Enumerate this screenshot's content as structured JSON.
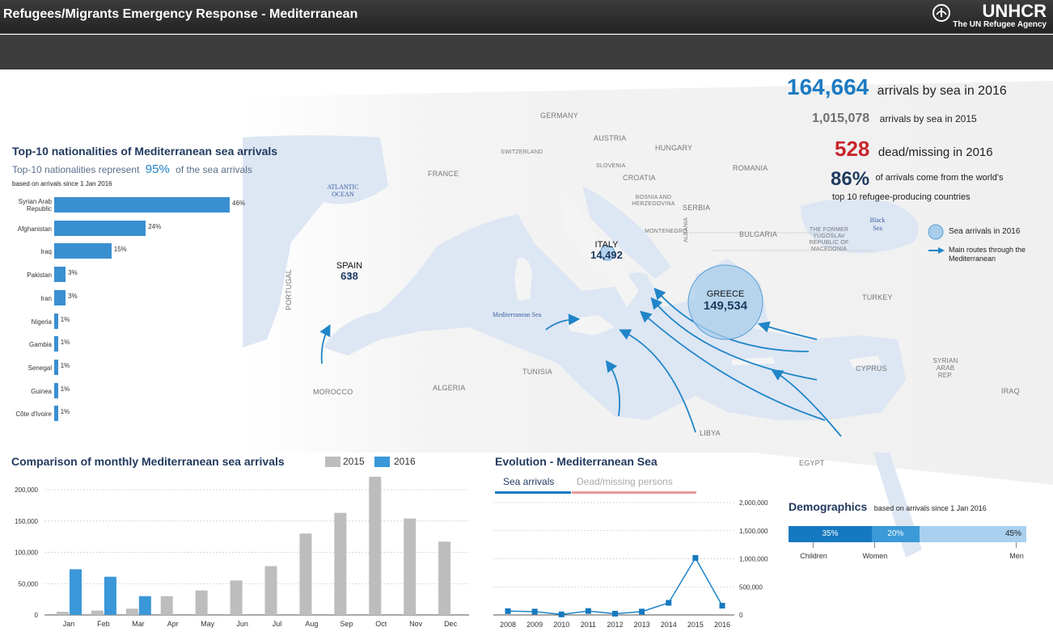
{
  "header": {
    "title": "Refugees/Migrants Emergency Response - Mediterranean",
    "logo_word": "UNHCR",
    "logo_tagline": "The UN Refugee Agency"
  },
  "kpis": {
    "arrivals_2016": {
      "value": "164,664",
      "label": "arrivals by sea in 2016"
    },
    "arrivals_2015": {
      "value": "1,015,078",
      "label": "arrivals by sea in 2015"
    },
    "dead_missing": {
      "value": "528",
      "label": "dead/missing in 2016"
    },
    "top10_share": {
      "value": "86%",
      "label_line1": "of arrivals come from the world's",
      "label_line2": "top 10 refugee-producing countries"
    }
  },
  "map": {
    "countries": [
      {
        "name": "GERMANY"
      },
      {
        "name": "AUSTRIA"
      },
      {
        "name": "SWITZERLAND"
      },
      {
        "name": "HUNGARY"
      },
      {
        "name": "SLOVENIA"
      },
      {
        "name": "CROATIA"
      },
      {
        "name": "ROMANIA"
      },
      {
        "name": "FRANCE"
      },
      {
        "name": "BOSNIA AND HERZEGOVINA"
      },
      {
        "name": "SERBIA"
      },
      {
        "name": "BULGARIA"
      },
      {
        "name": "MONTENEGRO"
      },
      {
        "name": "ALBANIA"
      },
      {
        "name": "THE FORMER YUGOSLAV REPUBLIC OF MACEDONIA"
      },
      {
        "name": "PORTUGAL"
      },
      {
        "name": "TURKEY"
      },
      {
        "name": "TUNISIA"
      },
      {
        "name": "MOROCCO"
      },
      {
        "name": "ALGERIA"
      },
      {
        "name": "LIBYA"
      },
      {
        "name": "EGYPT"
      },
      {
        "name": "CYPRUS"
      },
      {
        "name": "SYRIAN ARAB REP."
      },
      {
        "name": "IRAQ"
      }
    ],
    "seas": [
      "ATLANTIC OCEAN",
      "Mediterranean Sea",
      "Black Sea"
    ],
    "hubs": [
      {
        "name": "SPAIN",
        "value": "638"
      },
      {
        "name": "ITALY",
        "value": "14,492"
      },
      {
        "name": "GREECE",
        "value": "149,534"
      }
    ],
    "legend": {
      "circle": "Sea arrivals in 2016",
      "route": "Main routes through the Mediterranean"
    },
    "colors": {
      "sea": "#dde6f3",
      "land": "#f2f2f2",
      "route": "#1f85c8",
      "circle": "#aacdeb"
    }
  },
  "nationalities": {
    "title": "Top-10 nationalities of Mediterranean sea arrivals",
    "subtitle_prefix": "Top-10 nationalities represent",
    "subtitle_value": "95%",
    "subtitle_suffix": "of the sea arrivals",
    "note": "based on arrivals since 1 Jan 2016",
    "items": [
      {
        "name": "Syrian Arab Republic",
        "pct": 46,
        "label": "46%"
      },
      {
        "name": "Afghanistan",
        "pct": 24,
        "label": "24%"
      },
      {
        "name": "Iraq",
        "pct": 15,
        "label": "15%"
      },
      {
        "name": "Pakistan",
        "pct": 3,
        "label": "3%"
      },
      {
        "name": "Iran",
        "pct": 3,
        "label": "3%"
      },
      {
        "name": "Nigeria",
        "pct": 1,
        "label": "1%"
      },
      {
        "name": "Gambia",
        "pct": 1,
        "label": "1%"
      },
      {
        "name": "Senegal",
        "pct": 1,
        "label": "1%"
      },
      {
        "name": "Guinea",
        "pct": 1,
        "label": "1%"
      },
      {
        "name": "Côte d'Ivoire",
        "pct": 1,
        "label": "1%"
      }
    ]
  },
  "monthly": {
    "title": "Comparison of monthly Mediterranean sea arrivals",
    "legend_2015": "2015",
    "legend_2016": "2016"
  },
  "evolution": {
    "title": "Evolution - Mediterranean Sea",
    "tab_sea": "Sea arrivals",
    "tab_dead": "Dead/missing persons"
  },
  "demographics": {
    "title": "Demographics",
    "note": "based on arrivals since 1 Jan 2016",
    "segments": [
      {
        "label": "Children",
        "pct": 35,
        "text": "35%",
        "color": "#1579c0"
      },
      {
        "label": "Women",
        "pct": 20,
        "text": "20%",
        "color": "#3b9ad8"
      },
      {
        "label": "Men",
        "pct": 45,
        "text": "45%",
        "color": "#a9d0ef"
      }
    ]
  },
  "chart_data": [
    {
      "type": "bar",
      "title": "Top-10 nationalities of Mediterranean sea arrivals",
      "categories": [
        "Syrian Arab Republic",
        "Afghanistan",
        "Iraq",
        "Pakistan",
        "Iran",
        "Nigeria",
        "Gambia",
        "Senegal",
        "Guinea",
        "Côte d'Ivoire"
      ],
      "values": [
        46,
        24,
        15,
        3,
        3,
        1,
        1,
        1,
        1,
        1
      ],
      "orientation": "horizontal"
    },
    {
      "type": "bar",
      "title": "Comparison of monthly Mediterranean sea arrivals",
      "categories": [
        "Jan",
        "Feb",
        "Mar",
        "Apr",
        "May",
        "Jun",
        "Jul",
        "Aug",
        "Sep",
        "Oct",
        "Nov",
        "Dec"
      ],
      "series": [
        {
          "name": "2015",
          "color": "#bdbdbd",
          "values": [
            5000,
            7000,
            10000,
            30000,
            39000,
            55000,
            78000,
            130000,
            163000,
            221000,
            154000,
            117000
          ]
        },
        {
          "name": "2016",
          "color": "#3a97d8",
          "values": [
            73000,
            61000,
            30000,
            null,
            null,
            null,
            null,
            null,
            null,
            null,
            null,
            null
          ]
        }
      ],
      "yticks": [
        "0",
        "50,000",
        "100,000",
        "150,000",
        "200,000"
      ],
      "ylim": [
        0,
        200000
      ],
      "grid": true,
      "legend": "top"
    },
    {
      "type": "line",
      "title": "Evolution - Mediterranean Sea",
      "x": [
        "2008",
        "2009",
        "2010",
        "2011",
        "2012",
        "2013",
        "2014",
        "2015",
        "2016"
      ],
      "series": [
        {
          "name": "Sea arrivals",
          "color": "#1f85c8",
          "values": [
            68000,
            60000,
            9700,
            70000,
            22500,
            60000,
            216000,
            1015078,
            164664
          ]
        }
      ],
      "yticks": [
        "0",
        "500,000",
        "1,000,000",
        "1,500,000",
        "2,000,000"
      ],
      "ylim": [
        0,
        2000000
      ],
      "grid": true
    }
  ]
}
